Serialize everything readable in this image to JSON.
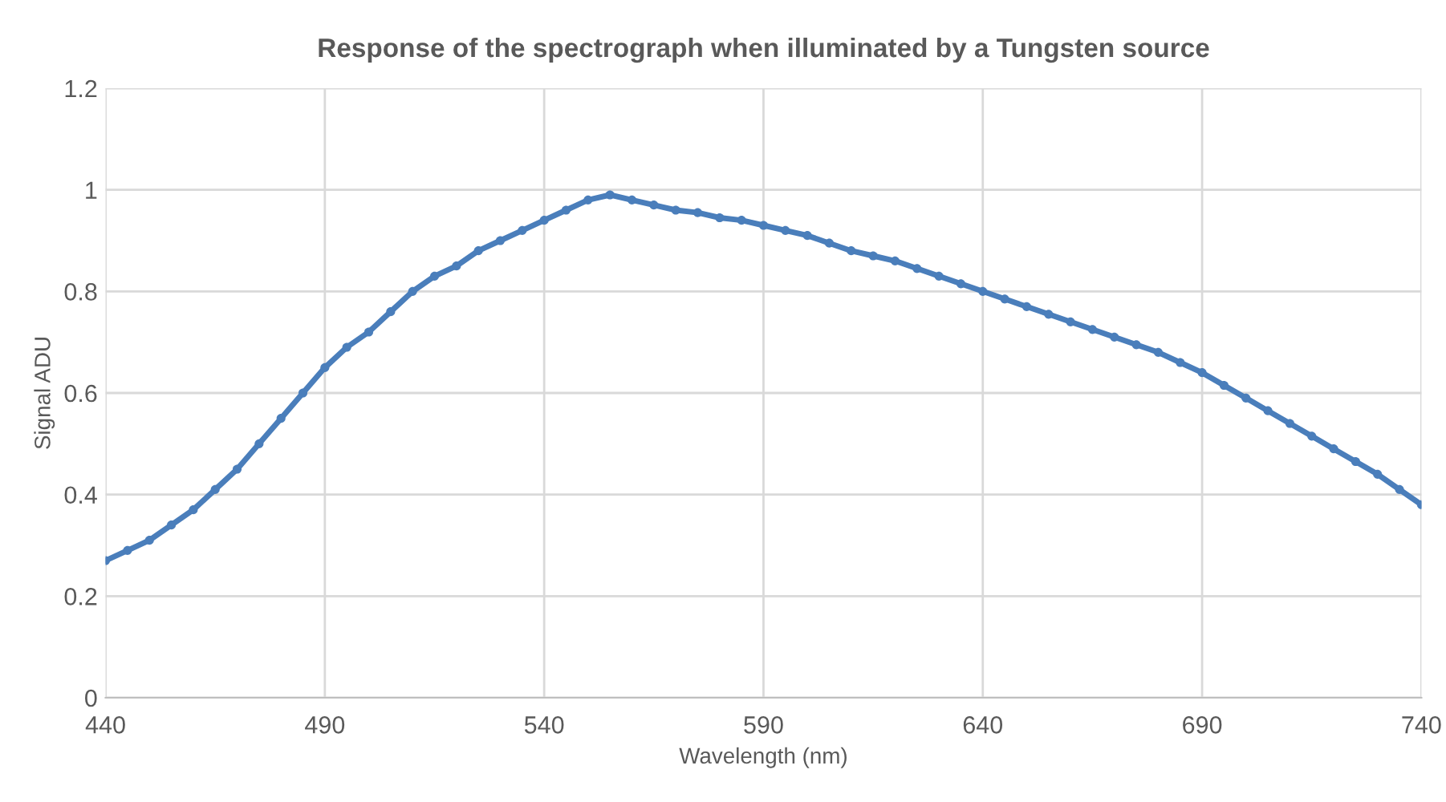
{
  "chart_data": {
    "type": "line",
    "title": "Response of the spectrograph when illuminated by a Tungsten source",
    "xlabel": "Wavelength (nm)",
    "ylabel": "Signal ADU",
    "x": [
      440,
      445,
      450,
      455,
      460,
      465,
      470,
      475,
      480,
      485,
      490,
      495,
      500,
      505,
      510,
      515,
      520,
      525,
      530,
      535,
      540,
      545,
      550,
      555,
      560,
      565,
      570,
      575,
      580,
      585,
      590,
      595,
      600,
      605,
      610,
      615,
      620,
      625,
      630,
      635,
      640,
      645,
      650,
      655,
      660,
      665,
      670,
      675,
      680,
      685,
      690,
      695,
      700,
      705,
      710,
      715,
      720,
      725,
      730,
      735,
      740
    ],
    "series": [
      {
        "color": "#4a7ebb",
        "values": [
          0.27,
          0.29,
          0.31,
          0.34,
          0.37,
          0.41,
          0.45,
          0.5,
          0.55,
          0.6,
          0.65,
          0.69,
          0.72,
          0.76,
          0.8,
          0.83,
          0.85,
          0.88,
          0.9,
          0.92,
          0.94,
          0.96,
          0.98,
          0.99,
          0.98,
          0.97,
          0.96,
          0.955,
          0.945,
          0.94,
          0.93,
          0.92,
          0.91,
          0.895,
          0.88,
          0.87,
          0.86,
          0.845,
          0.83,
          0.815,
          0.8,
          0.785,
          0.77,
          0.755,
          0.74,
          0.725,
          0.71,
          0.695,
          0.68,
          0.66,
          0.64,
          0.615,
          0.59,
          0.565,
          0.54,
          0.515,
          0.49,
          0.465,
          0.44,
          0.41,
          0.38
        ]
      }
    ],
    "xlim": [
      440,
      740
    ],
    "xticks": [
      440,
      490,
      540,
      590,
      640,
      690,
      740
    ],
    "ylim": [
      0,
      1.2
    ],
    "yticks": [
      {
        "value": 0,
        "label": "0"
      },
      {
        "value": 0.2,
        "label": "0.2"
      },
      {
        "value": 0.4,
        "label": "0.4"
      },
      {
        "value": 0.6,
        "label": "0.6"
      },
      {
        "value": 0.8,
        "label": "0.8"
      },
      {
        "value": 1,
        "label": "1"
      },
      {
        "value": 1.2,
        "label": "1.2"
      }
    ],
    "grid": true,
    "marker": "circle",
    "legend": false
  }
}
